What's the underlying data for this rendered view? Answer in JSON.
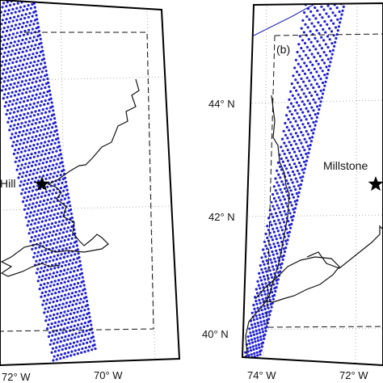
{
  "left_panel": {
    "place_label": "Hill",
    "lon_labels": [
      "72° W",
      "70° W"
    ]
  },
  "right_panel": {
    "panel_tag": "(b)",
    "place_label": "Millstone",
    "lat_labels": [
      "44° N",
      "42° N",
      "40° N"
    ],
    "lon_labels": [
      "74° W",
      "72° W"
    ]
  },
  "colors": {
    "swath_dots": "#1f1fd6",
    "coastline": "#111111",
    "state_border": "#2a2ab8",
    "frame": "#000000",
    "grid": "#9a9a9a"
  },
  "icons": {
    "site_marker": "star-icon"
  }
}
